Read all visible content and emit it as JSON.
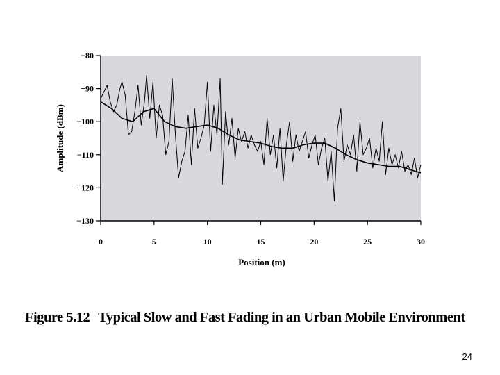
{
  "caption": {
    "figure_number": "Figure 5.12",
    "text": "Typical Slow and Fast Fading in an Urban Mobile Environment"
  },
  "page_number": "24",
  "chart_data": {
    "type": "line",
    "title": "",
    "xlabel": "Position (m)",
    "ylabel": "Amplitude (dBm)",
    "xlim": [
      0,
      30
    ],
    "ylim": [
      -130,
      -80
    ],
    "x_ticks": [
      0,
      5,
      10,
      15,
      20,
      25,
      30
    ],
    "y_ticks": [
      -80,
      -90,
      -100,
      -110,
      -120,
      -130
    ],
    "y_tick_labels": [
      "−80",
      "−90",
      "−100",
      "−110",
      "−120",
      "−130"
    ],
    "grid": false,
    "plot_background": "#d9d9dd",
    "series": [
      {
        "name": "",
        "role": "fast fading",
        "color": "#000000",
        "x": [
          0,
          0.3,
          0.6,
          0.9,
          1.2,
          1.5,
          1.8,
          2.0,
          2.3,
          2.6,
          2.9,
          3.2,
          3.5,
          3.8,
          4.1,
          4.3,
          4.6,
          4.9,
          5.2,
          5.5,
          5.8,
          6.1,
          6.4,
          6.7,
          7.0,
          7.3,
          7.6,
          7.9,
          8.2,
          8.5,
          8.8,
          9.1,
          9.4,
          9.7,
          10.0,
          10.3,
          10.6,
          10.9,
          11.2,
          11.4,
          11.7,
          12.0,
          12.3,
          12.6,
          12.9,
          13.2,
          13.5,
          13.8,
          14.1,
          14.4,
          14.7,
          15.0,
          15.3,
          15.6,
          15.9,
          16.2,
          16.5,
          16.8,
          17.1,
          17.4,
          17.7,
          18.0,
          18.3,
          18.6,
          18.9,
          19.2,
          19.5,
          19.8,
          20.1,
          20.4,
          20.7,
          21.0,
          21.3,
          21.6,
          21.9,
          22.2,
          22.5,
          22.8,
          23.1,
          23.4,
          23.7,
          24.0,
          24.3,
          24.6,
          24.9,
          25.2,
          25.5,
          25.8,
          26.1,
          26.4,
          26.7,
          27.0,
          27.3,
          27.6,
          27.9,
          28.2,
          28.5,
          28.8,
          29.1,
          29.4,
          29.7,
          30.0
        ],
        "values": [
          -93,
          -91,
          -89,
          -94,
          -97,
          -95,
          -90,
          -88,
          -92,
          -104,
          -103,
          -97,
          -89,
          -101,
          -94,
          -86,
          -99,
          -88,
          -105,
          -95,
          -98,
          -110,
          -106,
          -87,
          -104,
          -117,
          -112,
          -109,
          -98,
          -113,
          -96,
          -108,
          -105,
          -101,
          -88,
          -109,
          -95,
          -104,
          -87,
          -119,
          -97,
          -107,
          -99,
          -111,
          -102,
          -106,
          -103,
          -108,
          -104,
          -107,
          -109,
          -106,
          -113,
          -99,
          -110,
          -104,
          -114,
          -102,
          -118,
          -107,
          -100,
          -112,
          -104,
          -109,
          -106,
          -103,
          -111,
          -107,
          -104,
          -113,
          -108,
          -105,
          -118,
          -109,
          -124,
          -102,
          -96,
          -112,
          -107,
          -110,
          -104,
          -115,
          -100,
          -110,
          -108,
          -105,
          -114,
          -108,
          -112,
          -100,
          -116,
          -108,
          -113,
          -110,
          -114,
          -109,
          -115,
          -113,
          -116,
          -111,
          -117,
          -113
        ]
      },
      {
        "name": "",
        "role": "slow fading (local mean)",
        "color": "#000000",
        "x": [
          0,
          1,
          2,
          3,
          4,
          5,
          6,
          7,
          8,
          9,
          10,
          11,
          12,
          13,
          14,
          15,
          16,
          17,
          18,
          19,
          20,
          21,
          22,
          23,
          24,
          25,
          26,
          27,
          28,
          29,
          30
        ],
        "values": [
          -94,
          -96,
          -99,
          -100,
          -97,
          -96,
          -100,
          -101.5,
          -102,
          -101.5,
          -101,
          -102,
          -104,
          -105.5,
          -106,
          -106.5,
          -107.5,
          -108,
          -108,
          -107,
          -106.5,
          -106.5,
          -108,
          -110,
          -111.5,
          -112.5,
          -113,
          -113.5,
          -113.5,
          -114.5,
          -115.5
        ]
      }
    ]
  }
}
